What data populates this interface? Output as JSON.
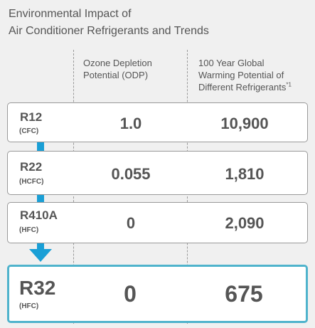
{
  "title": {
    "line1": "Environmental Impact of",
    "line2": "Air Conditioner Refrigerants and Trends"
  },
  "columns": {
    "odp": {
      "line1": "Ozone Depletion",
      "line2": "Potential (ODP)"
    },
    "gwp": {
      "line1": "100 Year Global",
      "line2": "Warming Potential of",
      "line3": "Different Refrigerants",
      "footnote": "*1"
    }
  },
  "rows": [
    {
      "code": "R12",
      "type": "(CFC)",
      "odp": "1.0",
      "gwp": "10,900"
    },
    {
      "code": "R22",
      "type": "(HCFC)",
      "odp": "0.055",
      "gwp": "1,810"
    },
    {
      "code": "R410A",
      "type": "(HFC)",
      "odp": "0",
      "gwp": "2,090"
    },
    {
      "code": "R32",
      "type": "(HFC)",
      "odp": "0",
      "gwp": "675"
    }
  ],
  "colors": {
    "accent": "#1a9fd6",
    "highlight_border": "#4fb3cc",
    "background": "#f0f0f0"
  },
  "icons": {
    "arrow": "arrow-down-icon"
  }
}
